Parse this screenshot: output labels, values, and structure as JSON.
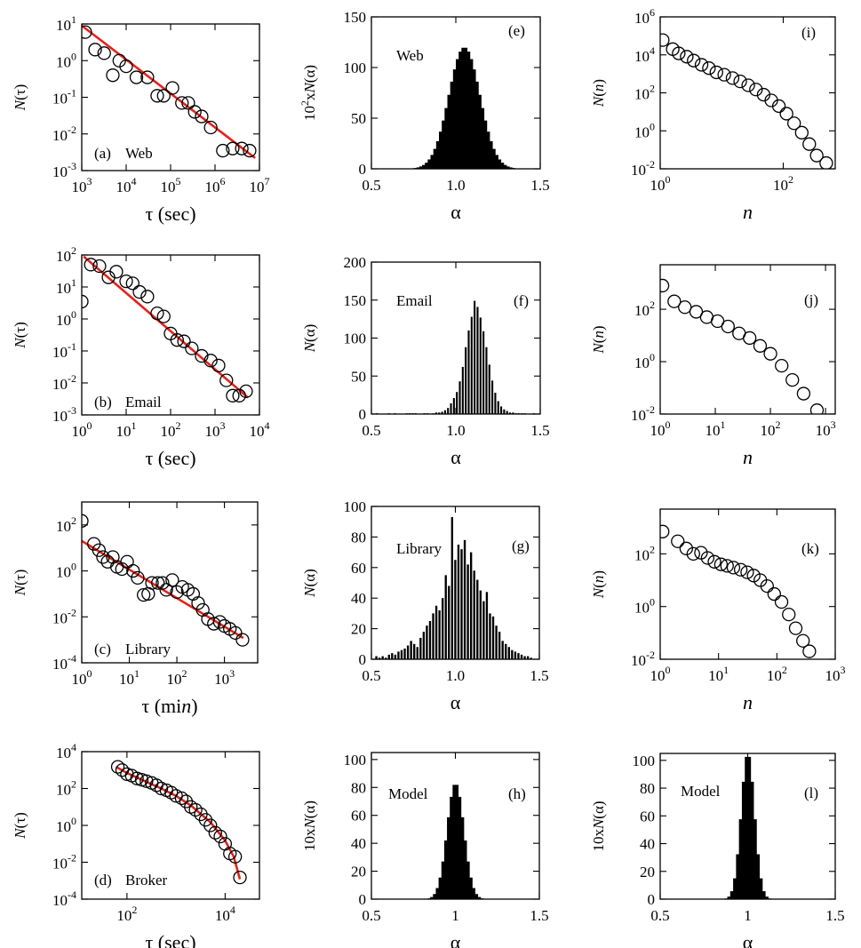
{
  "chart_data": [
    {
      "id": "a",
      "type": "scatter",
      "panel_label": "(a)",
      "dataset": "Web",
      "xlabel": "τ (sec)",
      "ylabel": "N(τ)",
      "xscale": "log",
      "yscale": "log",
      "xlim": [
        1000,
        10000000
      ],
      "ylim": [
        0.001,
        10
      ],
      "xticks": [
        {
          "b": "10",
          "e": "3"
        },
        {
          "b": "10",
          "e": "4"
        },
        {
          "b": "10",
          "e": "5"
        },
        {
          "b": "10",
          "e": "6"
        },
        {
          "b": "10",
          "e": "7"
        }
      ],
      "yticks": [
        {
          "b": "10",
          "e": "-3"
        },
        {
          "b": "10",
          "e": "-2"
        },
        {
          "b": "10",
          "e": "-1"
        },
        {
          "b": "10",
          "e": "0"
        },
        {
          "b": "10",
          "e": "1"
        }
      ],
      "points": {
        "x": [
          1200,
          2000,
          3200,
          5000,
          7000,
          10000,
          17000,
          30000,
          50000,
          70000,
          110000,
          180000,
          250000,
          350000,
          500000,
          800000,
          1500000,
          2500000,
          4000000,
          6000000
        ],
        "y": [
          6.0,
          2.0,
          1.6,
          0.4,
          1.0,
          0.7,
          0.35,
          0.35,
          0.11,
          0.11,
          0.18,
          0.07,
          0.07,
          0.04,
          0.03,
          0.015,
          0.0035,
          0.004,
          0.004,
          0.0035
        ]
      },
      "fit": {
        "x": [
          1000,
          8000000
        ],
        "y": [
          9.0,
          0.0022
        ]
      }
    },
    {
      "id": "b",
      "type": "scatter",
      "panel_label": "(b)",
      "dataset": "Email",
      "xlabel": "τ (sec)",
      "ylabel": "N(τ)",
      "xscale": "log",
      "yscale": "log",
      "xlim": [
        1,
        10000
      ],
      "ylim": [
        0.001,
        100
      ],
      "xticks": [
        {
          "b": "10",
          "e": "0"
        },
        {
          "b": "10",
          "e": "1"
        },
        {
          "b": "10",
          "e": "2"
        },
        {
          "b": "10",
          "e": "3"
        },
        {
          "b": "10",
          "e": "4"
        }
      ],
      "yticks": [
        {
          "b": "10",
          "e": "-3"
        },
        {
          "b": "10",
          "e": "-2"
        },
        {
          "b": "10",
          "e": "-1"
        },
        {
          "b": "10",
          "e": "0"
        },
        {
          "b": "10",
          "e": "1"
        },
        {
          "b": "10",
          "e": "2"
        }
      ],
      "points": {
        "x": [
          1.0,
          1.6,
          2.5,
          4.0,
          6.0,
          10,
          14,
          20,
          30,
          50,
          70,
          100,
          140,
          200,
          300,
          500,
          800,
          1200,
          1800,
          2500,
          3500,
          5000
        ],
        "y": [
          3.5,
          50,
          45,
          20,
          30,
          15,
          13,
          7,
          5,
          1.5,
          1.2,
          0.35,
          0.22,
          0.2,
          0.12,
          0.07,
          0.05,
          0.035,
          0.012,
          0.004,
          0.004,
          0.0055
        ]
      },
      "fit": {
        "x": [
          1.1,
          5500
        ],
        "y": [
          90,
          0.0035
        ]
      }
    },
    {
      "id": "c",
      "type": "scatter",
      "panel_label": "(c)",
      "dataset": "Library",
      "xlabel": "τ (min)",
      "ylabel": "N(τ)",
      "xscale": "log",
      "yscale": "log",
      "xlim": [
        1,
        5000
      ],
      "ylim": [
        0.0001,
        1000
      ],
      "xticks": [
        {
          "b": "10",
          "e": "0"
        },
        {
          "b": "10",
          "e": "1"
        },
        {
          "b": "10",
          "e": "2"
        },
        {
          "b": "10",
          "e": "3"
        }
      ],
      "yticks": [
        {
          "b": "10",
          "e": "-4"
        },
        {
          "b": "10",
          "e": "-2"
        },
        {
          "b": "10",
          "e": "0"
        },
        {
          "b": "10",
          "e": "2"
        }
      ],
      "points": {
        "x": [
          1.0,
          1.8,
          2.3,
          2.8,
          3.5,
          4.5,
          5.5,
          7,
          9,
          12,
          15,
          20,
          25,
          30,
          40,
          50,
          60,
          80,
          100,
          130,
          170,
          220,
          280,
          350,
          450,
          600,
          800,
          1000,
          1300,
          1700,
          2400
        ],
        "y": [
          150,
          15,
          8,
          4,
          2.5,
          4,
          1.5,
          1.2,
          2.5,
          1.0,
          0.5,
          0.09,
          0.1,
          0.3,
          0.3,
          0.3,
          0.15,
          0.4,
          0.12,
          0.2,
          0.15,
          0.1,
          0.04,
          0.02,
          0.008,
          0.005,
          0.006,
          0.004,
          0.003,
          0.002,
          0.001
        ]
      },
      "fit": {
        "x": [
          1.0,
          2500
        ],
        "y": [
          20,
          0.0012
        ]
      }
    },
    {
      "id": "d",
      "type": "scatter",
      "panel_label": "(d)",
      "dataset": "Broker",
      "xlabel": "τ (sec)",
      "ylabel": "N(τ)",
      "xscale": "log",
      "yscale": "log",
      "xlim": [
        12,
        50000
      ],
      "ylim": [
        0.0001,
        10000
      ],
      "xticks": [
        {
          "b": "10",
          "e": "2"
        },
        {
          "b": "10",
          "e": "4"
        }
      ],
      "yticks": [
        {
          "b": "10",
          "e": "-4"
        },
        {
          "b": "10",
          "e": "-2"
        },
        {
          "b": "10",
          "e": "0"
        },
        {
          "b": "10",
          "e": "2"
        },
        {
          "b": "10",
          "e": "4"
        }
      ],
      "points": {
        "x": [
          65,
          80,
          100,
          125,
          160,
          200,
          250,
          320,
          400,
          500,
          640,
          800,
          1000,
          1300,
          1600,
          2000,
          2500,
          3200,
          4000,
          5000,
          6300,
          8000,
          10000,
          12500,
          16000,
          20000
        ],
        "y": [
          1500,
          1000,
          600,
          500,
          350,
          300,
          250,
          200,
          150,
          100,
          80,
          60,
          40,
          30,
          20,
          10,
          7,
          4,
          2,
          1,
          0.4,
          0.25,
          0.1,
          0.03,
          0.02,
          0.0015
        ]
      },
      "fit": {
        "x": [
          60,
          100,
          200,
          500,
          1000,
          2000,
          5000,
          10000,
          15000,
          20000
        ],
        "y": [
          1500,
          700,
          300,
          100,
          40,
          12,
          1.5,
          0.15,
          0.02,
          0.0012
        ]
      }
    },
    {
      "id": "e",
      "type": "bar",
      "panel_label": "(e)",
      "dataset": "Web",
      "xlabel": "α",
      "ylabel": "10^2xN(α)",
      "xlim": [
        0.5,
        1.5
      ],
      "ylim": [
        0,
        150
      ],
      "xticks": [
        "0.5",
        "1.0",
        "1.5"
      ],
      "yticks": [
        "0",
        "50",
        "100",
        "150"
      ],
      "gauss": {
        "mu": 1.05,
        "sigma": 0.092,
        "peak": 120
      }
    },
    {
      "id": "f",
      "type": "bar",
      "panel_label": "(f)",
      "dataset": "Email",
      "xlabel": "α",
      "ylabel": "N(α)",
      "xlim": [
        0.5,
        1.5
      ],
      "ylim": [
        0,
        200
      ],
      "xticks": [
        "0.5",
        "1.0",
        "1.5"
      ],
      "yticks": [
        "0",
        "50",
        "100",
        "150",
        "200"
      ],
      "bar_x0": 0.525,
      "bar_width": 0.0175,
      "values": [
        1,
        0,
        0,
        0,
        1,
        0,
        1,
        0,
        0,
        0,
        1,
        1,
        1,
        1,
        0,
        0,
        1,
        1,
        0,
        1,
        2,
        2,
        3,
        5,
        8,
        14,
        21,
        29,
        43,
        62,
        88,
        110,
        128,
        149,
        141,
        127,
        109,
        88,
        65,
        44,
        28,
        17,
        10,
        6,
        4,
        2,
        2,
        1,
        1,
        1,
        1,
        0,
        0,
        1,
        0,
        0,
        1
      ]
    },
    {
      "id": "g",
      "type": "bar",
      "panel_label": "(g)",
      "dataset": "Library",
      "xlabel": "α",
      "ylabel": "N(α)",
      "xlim": [
        0.5,
        1.5
      ],
      "ylim": [
        0,
        100
      ],
      "xticks": [
        "0.5",
        "1.0",
        "1.5"
      ],
      "yticks": [
        "0",
        "20",
        "40",
        "60",
        "80",
        "100"
      ],
      "bar_x0": 0.52,
      "bar_width": 0.0188,
      "values": [
        2,
        1,
        2,
        1,
        3,
        4,
        3,
        5,
        6,
        7,
        9,
        12,
        10,
        8,
        14,
        18,
        22,
        25,
        30,
        35,
        32,
        40,
        55,
        48,
        93,
        65,
        75,
        72,
        78,
        62,
        70,
        58,
        52,
        45,
        38,
        44,
        30,
        28,
        22,
        18,
        12,
        10,
        8,
        6,
        5,
        4,
        3,
        2,
        2,
        1
      ]
    },
    {
      "id": "h",
      "type": "bar",
      "panel_label": "(h)",
      "dataset": "Model",
      "xlabel": "α",
      "ylabel": "10xN(α)",
      "xlim": [
        0.5,
        1.5
      ],
      "ylim": [
        0,
        105
      ],
      "xticks": [
        "0.5",
        "1",
        "1.5"
      ],
      "yticks": [
        "0",
        "20",
        "40",
        "60",
        "80",
        "100"
      ],
      "gauss": {
        "mu": 1.0,
        "sigma": 0.05,
        "peak": 83
      }
    },
    {
      "id": "i",
      "type": "scatter",
      "panel_label": "(i)",
      "dataset": "",
      "xlabel": "n",
      "ylabel": "N(n)",
      "xscale": "log",
      "yscale": "log",
      "xlim": [
        1,
        700
      ],
      "ylim": [
        0.01,
        1000000
      ],
      "xticks": [
        {
          "b": "10",
          "e": "0"
        },
        {
          "b": "10",
          "e": "2"
        }
      ],
      "yticks": [
        {
          "b": "10",
          "e": "-2"
        },
        {
          "b": "10",
          "e": "0"
        },
        {
          "b": "10",
          "e": "2"
        },
        {
          "b": "10",
          "e": "4"
        },
        {
          "b": "10",
          "e": "6"
        }
      ],
      "points": {
        "x": [
          1.1,
          1.6,
          2.0,
          2.7,
          3.5,
          4.7,
          6.2,
          8.2,
          11,
          15,
          20,
          27,
          36,
          48,
          64,
          85,
          113,
          150,
          200,
          265,
          350,
          500
        ],
        "y": [
          60000,
          20000,
          12000,
          8000,
          5000,
          3000,
          2000,
          1200,
          900,
          600,
          400,
          250,
          150,
          80,
          40,
          20,
          8,
          2.5,
          0.8,
          0.2,
          0.05,
          0.02
        ]
      }
    },
    {
      "id": "j",
      "type": "scatter",
      "panel_label": "(j)",
      "dataset": "",
      "xlabel": "n",
      "ylabel": "N(n)",
      "xscale": "log",
      "yscale": "log",
      "xlim": [
        1,
        1500
      ],
      "ylim": [
        0.01,
        5000
      ],
      "xticks": [
        {
          "b": "10",
          "e": "0"
        },
        {
          "b": "10",
          "e": "1"
        },
        {
          "b": "10",
          "e": "2"
        },
        {
          "b": "10",
          "e": "3"
        }
      ],
      "yticks": [
        {
          "b": "10",
          "e": "-2"
        },
        {
          "b": "10",
          "e": "0"
        },
        {
          "b": "10",
          "e": "2"
        }
      ],
      "points": {
        "x": [
          1.1,
          1.8,
          2.8,
          4.5,
          7.0,
          11,
          17,
          27,
          42,
          65,
          100,
          160,
          250,
          400,
          700
        ],
        "y": [
          800,
          200,
          120,
          80,
          50,
          35,
          22,
          12,
          8,
          4,
          2,
          0.7,
          0.2,
          0.06,
          0.014
        ]
      }
    },
    {
      "id": "k",
      "type": "scatter",
      "panel_label": "(k)",
      "dataset": "",
      "xlabel": "n",
      "ylabel": "N(n)",
      "xscale": "log",
      "yscale": "log",
      "xlim": [
        1,
        1000
      ],
      "ylim": [
        0.01,
        5000
      ],
      "xticks": [
        {
          "b": "10",
          "e": "0"
        },
        {
          "b": "10",
          "e": "1"
        },
        {
          "b": "10",
          "e": "2"
        },
        {
          "b": "10",
          "e": "3"
        }
      ],
      "yticks": [
        {
          "b": "10",
          "e": "-2"
        },
        {
          "b": "10",
          "e": "0"
        },
        {
          "b": "10",
          "e": "2"
        }
      ],
      "points": {
        "x": [
          1.1,
          2.0,
          2.8,
          3.7,
          5.0,
          6.5,
          8.5,
          11,
          14,
          18,
          24,
          31,
          40,
          52,
          68,
          90,
          120,
          160,
          210,
          280,
          360
        ],
        "y": [
          700,
          300,
          160,
          100,
          110,
          70,
          50,
          40,
          35,
          30,
          25,
          20,
          15,
          10,
          6,
          3,
          1.5,
          0.5,
          0.15,
          0.05,
          0.02
        ]
      }
    },
    {
      "id": "l",
      "type": "bar",
      "panel_label": "(l)",
      "dataset": "Model",
      "xlabel": "α",
      "ylabel": "10xN(α)",
      "xlim": [
        0.5,
        1.5
      ],
      "ylim": [
        0,
        105
      ],
      "xticks": [
        "0.5",
        "1",
        "1.5"
      ],
      "yticks": [
        "0",
        "20",
        "40",
        "60",
        "80",
        "100"
      ],
      "gauss": {
        "mu": 1.0,
        "sigma": 0.038,
        "peak": 105
      }
    }
  ]
}
